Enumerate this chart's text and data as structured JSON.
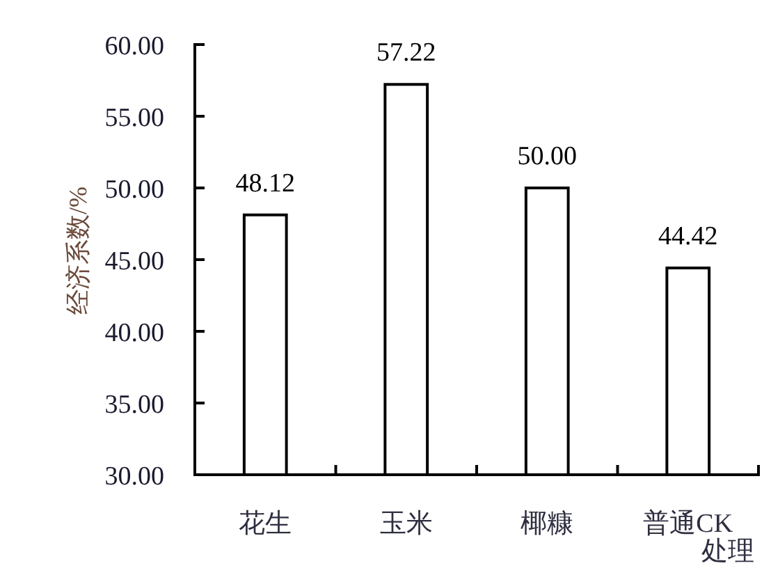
{
  "chart_data": {
    "type": "bar",
    "categories": [
      "花生",
      "玉米",
      "椰糠",
      "普通CK"
    ],
    "values": [
      48.12,
      57.22,
      50.0,
      44.42
    ],
    "value_labels": [
      "48.12",
      "57.22",
      "50.00",
      "44.42"
    ],
    "color": "#ffffff",
    "xlabel": "处理",
    "ylabel": "经济系数/%",
    "ylim": [
      30,
      60
    ],
    "yticks": [
      {
        "value": 30,
        "label": "30.00"
      },
      {
        "value": 35,
        "label": "35.00"
      },
      {
        "value": 40,
        "label": "40.00"
      },
      {
        "value": 45,
        "label": "45.00"
      },
      {
        "value": 50,
        "label": "50.00"
      },
      {
        "value": 55,
        "label": "55.00"
      },
      {
        "value": 60,
        "label": "60.00"
      }
    ]
  }
}
